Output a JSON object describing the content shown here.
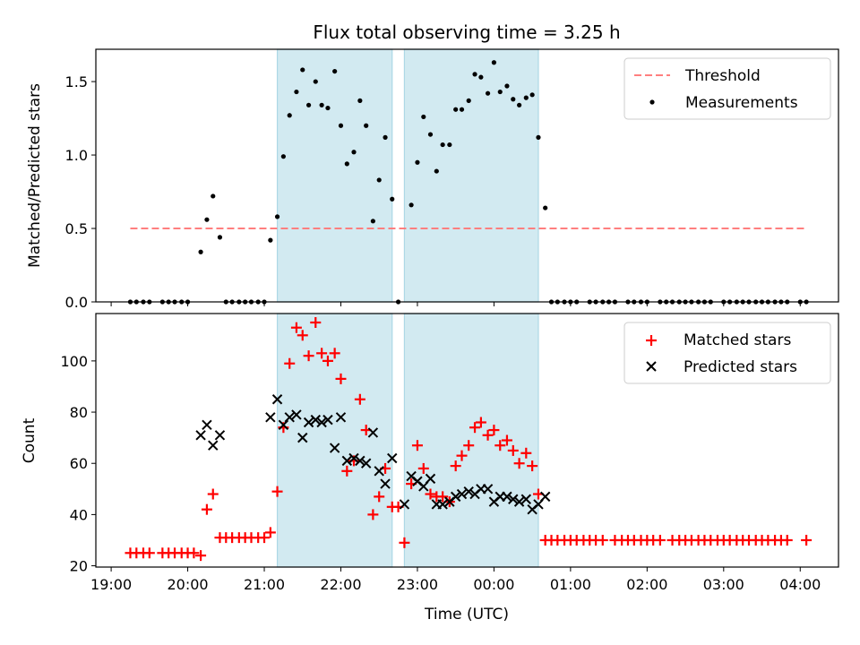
{
  "chart_data": {
    "title": "Flux total observing time = 3.25 h",
    "xlabel": "Time (UTC)",
    "x_unit": "hours since 19:00 UTC",
    "xlim": [
      -0.2,
      9.5
    ],
    "xticks": [
      {
        "x": 0,
        "label": "19:00"
      },
      {
        "x": 1,
        "label": "20:00"
      },
      {
        "x": 2,
        "label": "21:00"
      },
      {
        "x": 3,
        "label": "22:00"
      },
      {
        "x": 4,
        "label": "23:00"
      },
      {
        "x": 5,
        "label": "00:00"
      },
      {
        "x": 6,
        "label": "01:00"
      },
      {
        "x": 7,
        "label": "02:00"
      },
      {
        "x": 8,
        "label": "03:00"
      },
      {
        "x": 9,
        "label": "04:00"
      }
    ],
    "shaded_intervals": [
      [
        2.17,
        3.67
      ],
      [
        3.83,
        5.58
      ]
    ],
    "shade_color": "#add8e6",
    "top": {
      "type": "scatter",
      "ylabel": "Matched/Predicted stars",
      "ylim": [
        0,
        1.72
      ],
      "yticks": [
        0.0,
        0.5,
        1.0,
        1.5
      ],
      "ytick_labels": [
        "0.0",
        "0.5",
        "1.0",
        "1.5"
      ],
      "legend": {
        "position": "top-right",
        "items": [
          "Threshold",
          "Measurements"
        ]
      },
      "threshold": {
        "name": "Threshold",
        "value": 0.5,
        "x_range": [
          0.25,
          9.08
        ],
        "color": "#ff7f7f"
      },
      "measurements": {
        "name": "Measurements",
        "color": "#000000",
        "points": [
          [
            0.25,
            0
          ],
          [
            0.33,
            0
          ],
          [
            0.42,
            0
          ],
          [
            0.5,
            0
          ],
          [
            0.67,
            0
          ],
          [
            0.75,
            0
          ],
          [
            0.83,
            0
          ],
          [
            0.92,
            0
          ],
          [
            1.0,
            0
          ],
          [
            1.17,
            0.34
          ],
          [
            1.25,
            0.56
          ],
          [
            1.33,
            0.72
          ],
          [
            1.42,
            0.44
          ],
          [
            1.5,
            0
          ],
          [
            1.58,
            0
          ],
          [
            1.67,
            0
          ],
          [
            1.75,
            0
          ],
          [
            1.83,
            0
          ],
          [
            1.92,
            0
          ],
          [
            2.0,
            0
          ],
          [
            2.08,
            0.42
          ],
          [
            2.17,
            0.58
          ],
          [
            2.25,
            0.99
          ],
          [
            2.33,
            1.27
          ],
          [
            2.42,
            1.43
          ],
          [
            2.5,
            1.58
          ],
          [
            2.58,
            1.34
          ],
          [
            2.67,
            1.5
          ],
          [
            2.75,
            1.34
          ],
          [
            2.83,
            1.32
          ],
          [
            2.92,
            1.57
          ],
          [
            3.0,
            1.2
          ],
          [
            3.08,
            0.94
          ],
          [
            3.17,
            1.02
          ],
          [
            3.25,
            1.37
          ],
          [
            3.33,
            1.2
          ],
          [
            3.42,
            0.55
          ],
          [
            3.5,
            0.83
          ],
          [
            3.58,
            1.12
          ],
          [
            3.67,
            0.7
          ],
          [
            3.75,
            0
          ],
          [
            3.92,
            0.66
          ],
          [
            4.0,
            0.95
          ],
          [
            4.08,
            1.26
          ],
          [
            4.17,
            1.14
          ],
          [
            4.25,
            0.89
          ],
          [
            4.33,
            1.07
          ],
          [
            4.42,
            1.07
          ],
          [
            4.5,
            1.31
          ],
          [
            4.58,
            1.31
          ],
          [
            4.67,
            1.37
          ],
          [
            4.75,
            1.55
          ],
          [
            4.83,
            1.53
          ],
          [
            4.92,
            1.42
          ],
          [
            5.0,
            1.63
          ],
          [
            5.08,
            1.43
          ],
          [
            5.17,
            1.47
          ],
          [
            5.25,
            1.38
          ],
          [
            5.33,
            1.34
          ],
          [
            5.42,
            1.39
          ],
          [
            5.5,
            1.41
          ],
          [
            5.58,
            1.12
          ],
          [
            5.67,
            0.64
          ],
          [
            5.75,
            0
          ],
          [
            5.83,
            0
          ],
          [
            5.92,
            0
          ],
          [
            6.0,
            0
          ],
          [
            6.08,
            0
          ],
          [
            6.25,
            0
          ],
          [
            6.33,
            0
          ],
          [
            6.42,
            0
          ],
          [
            6.5,
            0
          ],
          [
            6.58,
            0
          ],
          [
            6.75,
            0
          ],
          [
            6.83,
            0
          ],
          [
            6.92,
            0
          ],
          [
            7.0,
            0
          ],
          [
            7.17,
            0
          ],
          [
            7.25,
            0
          ],
          [
            7.33,
            0
          ],
          [
            7.42,
            0
          ],
          [
            7.5,
            0
          ],
          [
            7.58,
            0
          ],
          [
            7.67,
            0
          ],
          [
            7.75,
            0
          ],
          [
            7.83,
            0
          ],
          [
            8.0,
            0
          ],
          [
            8.08,
            0
          ],
          [
            8.17,
            0
          ],
          [
            8.25,
            0
          ],
          [
            8.33,
            0
          ],
          [
            8.42,
            0
          ],
          [
            8.5,
            0
          ],
          [
            8.58,
            0
          ],
          [
            8.67,
            0
          ],
          [
            8.75,
            0
          ],
          [
            8.83,
            0
          ],
          [
            9.0,
            0
          ],
          [
            9.08,
            0
          ]
        ]
      }
    },
    "bottom": {
      "type": "scatter",
      "ylabel": "Count",
      "ylim": [
        19.5,
        118.5
      ],
      "yticks": [
        20,
        40,
        60,
        80,
        100
      ],
      "legend": {
        "position": "top-right",
        "items": [
          "Matched stars",
          "Predicted stars"
        ]
      },
      "series": [
        {
          "name": "Matched stars",
          "marker": "+",
          "color": "#ff0000",
          "points": [
            [
              0.25,
              25
            ],
            [
              0.33,
              25
            ],
            [
              0.42,
              25
            ],
            [
              0.5,
              25
            ],
            [
              0.67,
              25
            ],
            [
              0.75,
              25
            ],
            [
              0.83,
              25
            ],
            [
              0.92,
              25
            ],
            [
              1.0,
              25
            ],
            [
              1.08,
              25
            ],
            [
              1.17,
              24
            ],
            [
              1.25,
              42
            ],
            [
              1.33,
              48
            ],
            [
              1.42,
              31
            ],
            [
              1.5,
              31
            ],
            [
              1.58,
              31
            ],
            [
              1.67,
              31
            ],
            [
              1.75,
              31
            ],
            [
              1.83,
              31
            ],
            [
              1.92,
              31
            ],
            [
              2.0,
              31
            ],
            [
              2.08,
              33
            ],
            [
              2.17,
              49
            ],
            [
              2.25,
              74
            ],
            [
              2.33,
              99
            ],
            [
              2.42,
              113
            ],
            [
              2.5,
              110
            ],
            [
              2.58,
              102
            ],
            [
              2.67,
              115
            ],
            [
              2.75,
              103
            ],
            [
              2.83,
              100
            ],
            [
              2.92,
              103
            ],
            [
              3.0,
              93
            ],
            [
              3.08,
              57
            ],
            [
              3.17,
              61
            ],
            [
              3.25,
              85
            ],
            [
              3.33,
              73
            ],
            [
              3.42,
              40
            ],
            [
              3.5,
              47
            ],
            [
              3.58,
              58
            ],
            [
              3.67,
              43
            ],
            [
              3.75,
              43
            ],
            [
              3.83,
              29
            ],
            [
              3.92,
              52
            ],
            [
              4.0,
              67
            ],
            [
              4.08,
              58
            ],
            [
              4.17,
              48
            ],
            [
              4.25,
              47
            ],
            [
              4.33,
              47
            ],
            [
              4.42,
              45
            ],
            [
              4.5,
              59
            ],
            [
              4.58,
              63
            ],
            [
              4.67,
              67
            ],
            [
              4.75,
              74
            ],
            [
              4.83,
              76
            ],
            [
              4.92,
              71
            ],
            [
              5.0,
              73
            ],
            [
              5.08,
              67
            ],
            [
              5.17,
              69
            ],
            [
              5.25,
              65
            ],
            [
              5.33,
              60
            ],
            [
              5.42,
              64
            ],
            [
              5.5,
              59
            ],
            [
              5.58,
              48
            ],
            [
              5.67,
              30
            ],
            [
              5.75,
              30
            ],
            [
              5.83,
              30
            ],
            [
              5.92,
              30
            ],
            [
              6.0,
              30
            ],
            [
              6.08,
              30
            ],
            [
              6.17,
              30
            ],
            [
              6.25,
              30
            ],
            [
              6.33,
              30
            ],
            [
              6.42,
              30
            ],
            [
              6.58,
              30
            ],
            [
              6.67,
              30
            ],
            [
              6.75,
              30
            ],
            [
              6.83,
              30
            ],
            [
              6.92,
              30
            ],
            [
              7.0,
              30
            ],
            [
              7.08,
              30
            ],
            [
              7.17,
              30
            ],
            [
              7.33,
              30
            ],
            [
              7.42,
              30
            ],
            [
              7.5,
              30
            ],
            [
              7.58,
              30
            ],
            [
              7.67,
              30
            ],
            [
              7.75,
              30
            ],
            [
              7.83,
              30
            ],
            [
              7.92,
              30
            ],
            [
              8.0,
              30
            ],
            [
              8.08,
              30
            ],
            [
              8.17,
              30
            ],
            [
              8.25,
              30
            ],
            [
              8.33,
              30
            ],
            [
              8.42,
              30
            ],
            [
              8.5,
              30
            ],
            [
              8.58,
              30
            ],
            [
              8.67,
              30
            ],
            [
              8.75,
              30
            ],
            [
              8.83,
              30
            ],
            [
              9.08,
              30
            ]
          ]
        },
        {
          "name": "Predicted stars",
          "marker": "x",
          "color": "#000000",
          "points": [
            [
              1.17,
              71
            ],
            [
              1.25,
              75
            ],
            [
              1.33,
              67
            ],
            [
              1.42,
              71
            ],
            [
              2.08,
              78
            ],
            [
              2.17,
              85
            ],
            [
              2.25,
              75
            ],
            [
              2.33,
              78
            ],
            [
              2.42,
              79
            ],
            [
              2.5,
              70
            ],
            [
              2.58,
              76
            ],
            [
              2.67,
              77
            ],
            [
              2.75,
              76
            ],
            [
              2.83,
              77
            ],
            [
              2.92,
              66
            ],
            [
              3.0,
              78
            ],
            [
              3.08,
              61
            ],
            [
              3.17,
              62
            ],
            [
              3.25,
              61
            ],
            [
              3.33,
              60
            ],
            [
              3.42,
              72
            ],
            [
              3.5,
              57
            ],
            [
              3.58,
              52
            ],
            [
              3.67,
              62
            ],
            [
              3.83,
              44
            ],
            [
              3.92,
              55
            ],
            [
              4.0,
              53
            ],
            [
              4.08,
              51
            ],
            [
              4.17,
              54
            ],
            [
              4.25,
              44
            ],
            [
              4.33,
              44
            ],
            [
              4.42,
              45
            ],
            [
              4.5,
              47
            ],
            [
              4.58,
              48
            ],
            [
              4.67,
              49
            ],
            [
              4.75,
              48
            ],
            [
              4.83,
              50
            ],
            [
              4.92,
              50
            ],
            [
              5.0,
              45
            ],
            [
              5.08,
              47
            ],
            [
              5.17,
              47
            ],
            [
              5.25,
              46
            ],
            [
              5.33,
              45
            ],
            [
              5.42,
              46
            ],
            [
              5.5,
              42
            ],
            [
              5.58,
              44
            ],
            [
              5.67,
              47
            ]
          ]
        }
      ]
    }
  }
}
